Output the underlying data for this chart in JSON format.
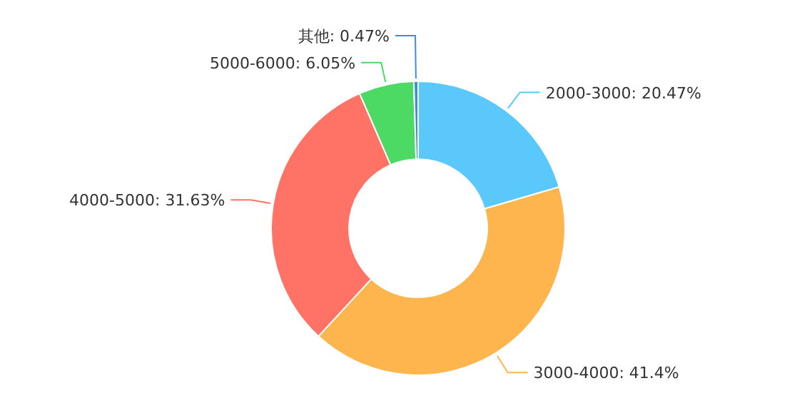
{
  "chart_data": {
    "type": "donut",
    "categories": [
      "2000-3000",
      "3000-4000",
      "4000-5000",
      "5000-6000",
      "其他"
    ],
    "values": [
      20.47,
      41.4,
      31.63,
      6.05,
      0.47
    ],
    "value_labels": [
      "20.47%",
      "41.4%",
      "31.63%",
      "6.05%",
      "0.47%"
    ],
    "colors": [
      "#5ac8fa",
      "#ffb54d",
      "#ff7366",
      "#4cd964",
      "#3a8ee6"
    ],
    "legend": false
  }
}
